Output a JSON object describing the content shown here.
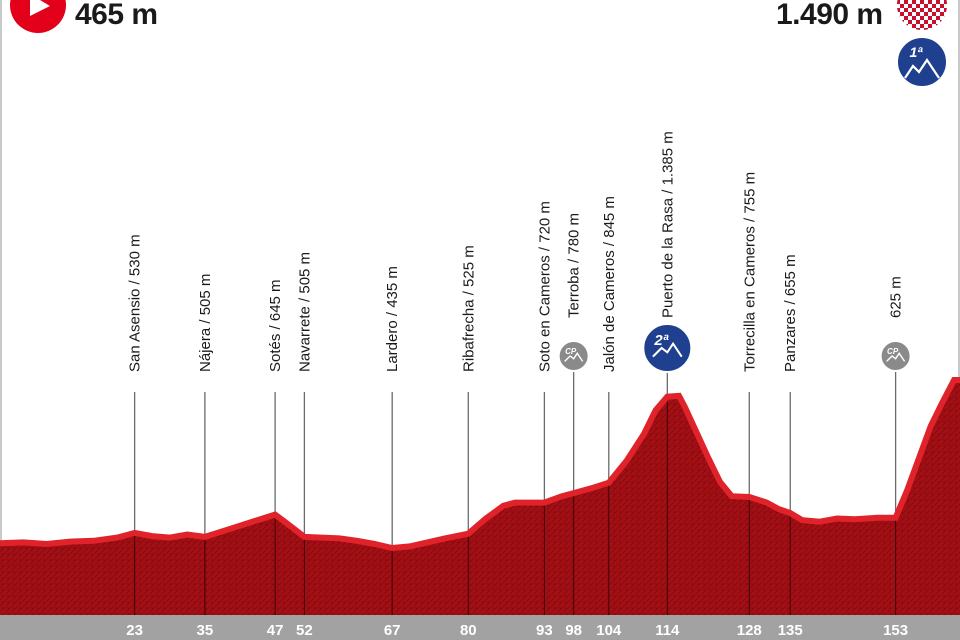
{
  "start": {
    "elevation": "465 m"
  },
  "finish": {
    "elevation": "1.490 m",
    "climb_category": "1ª"
  },
  "chart_data": {
    "type": "area",
    "xlabel": "",
    "ylabel": "",
    "xlim": [
      0,
      164
    ],
    "ylim": [
      200,
      1600
    ],
    "profile": [
      [
        0,
        465
      ],
      [
        4,
        470
      ],
      [
        8,
        460
      ],
      [
        12,
        475
      ],
      [
        16,
        480
      ],
      [
        20,
        500
      ],
      [
        23,
        530
      ],
      [
        26,
        510
      ],
      [
        29,
        500
      ],
      [
        32,
        520
      ],
      [
        35,
        505
      ],
      [
        38,
        540
      ],
      [
        41,
        575
      ],
      [
        44,
        610
      ],
      [
        47,
        645
      ],
      [
        49,
        590
      ],
      [
        52,
        505
      ],
      [
        55,
        500
      ],
      [
        58,
        495
      ],
      [
        61,
        480
      ],
      [
        64,
        460
      ],
      [
        67,
        435
      ],
      [
        70,
        445
      ],
      [
        73,
        470
      ],
      [
        76,
        495
      ],
      [
        80,
        525
      ],
      [
        83,
        620
      ],
      [
        86,
        700
      ],
      [
        88,
        720
      ],
      [
        91,
        720
      ],
      [
        93,
        720
      ],
      [
        96,
        760
      ],
      [
        98,
        780
      ],
      [
        101,
        810
      ],
      [
        104,
        845
      ],
      [
        107,
        980
      ],
      [
        110,
        1150
      ],
      [
        112,
        1300
      ],
      [
        114,
        1385
      ],
      [
        116,
        1390
      ],
      [
        117,
        1320
      ],
      [
        119,
        1160
      ],
      [
        121,
        1000
      ],
      [
        123,
        850
      ],
      [
        125,
        760
      ],
      [
        128,
        755
      ],
      [
        131,
        720
      ],
      [
        133,
        680
      ],
      [
        135,
        655
      ],
      [
        137,
        610
      ],
      [
        140,
        600
      ],
      [
        143,
        620
      ],
      [
        146,
        615
      ],
      [
        150,
        625
      ],
      [
        153,
        625
      ],
      [
        155,
        800
      ],
      [
        157,
        1000
      ],
      [
        159,
        1200
      ],
      [
        161,
        1350
      ],
      [
        163,
        1490
      ],
      [
        164,
        1490
      ]
    ],
    "points": [
      {
        "name": "San Asensio / 530 m",
        "km": 23,
        "km_label": "23",
        "elevation": 530
      },
      {
        "name": "Nájera / 505 m",
        "km": 35,
        "km_label": "35",
        "elevation": 505
      },
      {
        "name": "Sotés / 645 m",
        "km": 47,
        "km_label": "47",
        "elevation": 645
      },
      {
        "name": "Navarrete / 505 m",
        "km": 52,
        "km_label": "52",
        "elevation": 505
      },
      {
        "name": "Lardero / 435 m",
        "km": 67,
        "km_label": "67",
        "elevation": 435
      },
      {
        "name": "Ribafrecha / 525 m",
        "km": 80,
        "km_label": "80",
        "elevation": 525
      },
      {
        "name": "Soto en Cameros / 720 m",
        "km": 93,
        "km_label": "93",
        "elevation": 720
      },
      {
        "name": "Terroba / 780 m",
        "km": 98,
        "km_label": "98",
        "elevation": 780,
        "badge": "CP"
      },
      {
        "name": "Jalón de Cameros / 845 m",
        "km": 104,
        "km_label": "104",
        "elevation": 845
      },
      {
        "name": "Puerto de la Rasa / 1.385 m",
        "km": 114,
        "km_label": "114",
        "elevation": 1385,
        "badge": "2ª"
      },
      {
        "name": "Torrecilla en Cameros / 755 m",
        "km": 128,
        "km_label": "128",
        "elevation": 755
      },
      {
        "name": "Panzares / 655 m",
        "km": 135,
        "km_label": "135",
        "elevation": 655
      },
      {
        "name": "625 m",
        "km": 153,
        "km_label": "153",
        "elevation": 625,
        "badge": "CP"
      }
    ],
    "colors": {
      "fill": "#a30f14",
      "ridge": "#e0232b",
      "axis_band": "#a2a2a2",
      "start_marker": "#e2001a",
      "climb_badge": "#1f3f8f",
      "sprint_badge": "#8a8a8a"
    }
  }
}
